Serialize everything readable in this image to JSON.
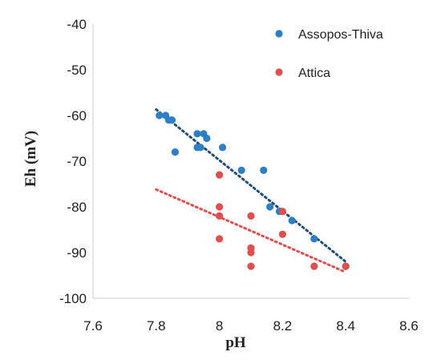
{
  "chart_data": {
    "type": "scatter",
    "xlabel": "pH",
    "ylabel": "Eh (mV)",
    "xlim": [
      7.6,
      8.6
    ],
    "ylim": [
      -100,
      -40
    ],
    "xticks": [
      "7.6",
      "7.8",
      "8",
      "8.2",
      "8.4",
      "8.6"
    ],
    "yticks": [
      "-40",
      "-50",
      "-60",
      "-70",
      "-80",
      "-90",
      "-100"
    ],
    "grid": false,
    "legend_position": "top-right",
    "series": [
      {
        "name": "Assopos-Thiva",
        "color": "#2E7EC4",
        "trend_color": "#1F4E79",
        "x": [
          7.81,
          7.83,
          7.84,
          7.85,
          7.86,
          7.93,
          7.93,
          7.94,
          7.95,
          7.96,
          8.01,
          8.07,
          8.14,
          8.16,
          8.19,
          8.23,
          8.3,
          8.4
        ],
        "y": [
          -60,
          -60,
          -61,
          -61,
          -68,
          -64,
          -67,
          -67,
          -64,
          -65,
          -67,
          -72,
          -72,
          -80,
          -81,
          -83,
          -87,
          -93
        ],
        "trendline": {
          "x": [
            7.8,
            8.4
          ],
          "y": [
            -58.7,
            -92
          ]
        }
      },
      {
        "name": "Attica",
        "color": "#E04E4E",
        "trend_color": "#E04E4E",
        "x": [
          8.0,
          8.0,
          8.0,
          8.0,
          8.1,
          8.1,
          8.1,
          8.1,
          8.2,
          8.2,
          8.3,
          8.4
        ],
        "y": [
          -73,
          -80,
          -82,
          -87,
          -82,
          -89,
          -90,
          -93,
          -81,
          -86,
          -93,
          -93
        ],
        "trendline": {
          "x": [
            7.8,
            8.4
          ],
          "y": [
            -76.2,
            -94.3
          ]
        }
      }
    ]
  }
}
